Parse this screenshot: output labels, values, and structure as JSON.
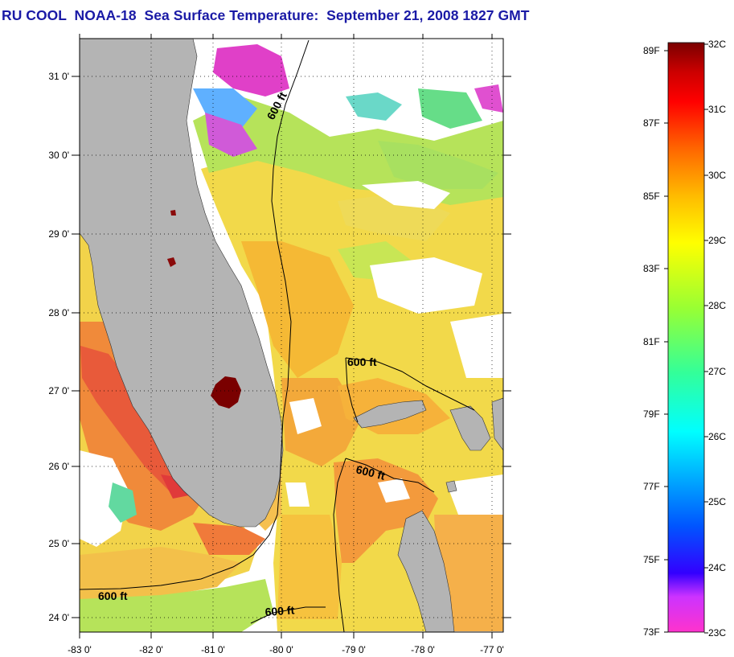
{
  "title": "RU COOL  NOAA-18  Sea Surface Temperature:  September 21, 2008 1827 GMT",
  "axes": {
    "lat_labels": [
      "31 0'",
      "30 0'",
      "29 0'",
      "28 0'",
      "27 0'",
      "26 0'",
      "25 0'",
      "24 0'"
    ],
    "lon_labels": [
      "-83 0'",
      "-82 0'",
      "-81 0'",
      "-80 0'",
      "-79 0'",
      "-78 0'",
      "-77 0'"
    ]
  },
  "contours": [
    {
      "label": "600 ft"
    },
    {
      "label": "600 ft"
    },
    {
      "label": "600 ft"
    },
    {
      "label": "600 ft"
    },
    {
      "label": "600 ft"
    }
  ],
  "colorbar": {
    "fahrenheit": [
      "89F",
      "87F",
      "85F",
      "83F",
      "81F",
      "79F",
      "77F",
      "75F",
      "73F"
    ],
    "celsius": [
      "32C",
      "31C",
      "30C",
      "29C",
      "28C",
      "27C",
      "26C",
      "25C",
      "24C",
      "23C"
    ],
    "colors": [
      "#ff33cc",
      "#cc33ff",
      "#3300ff",
      "#0055ff",
      "#00aaff",
      "#00ffff",
      "#33ff99",
      "#99ff33",
      "#ffff00",
      "#ffbb00",
      "#ff6600",
      "#ff0000",
      "#cc0000",
      "#7a0000"
    ]
  },
  "land_color": "#b4b4b4",
  "no_data_color": "#ffffff"
}
